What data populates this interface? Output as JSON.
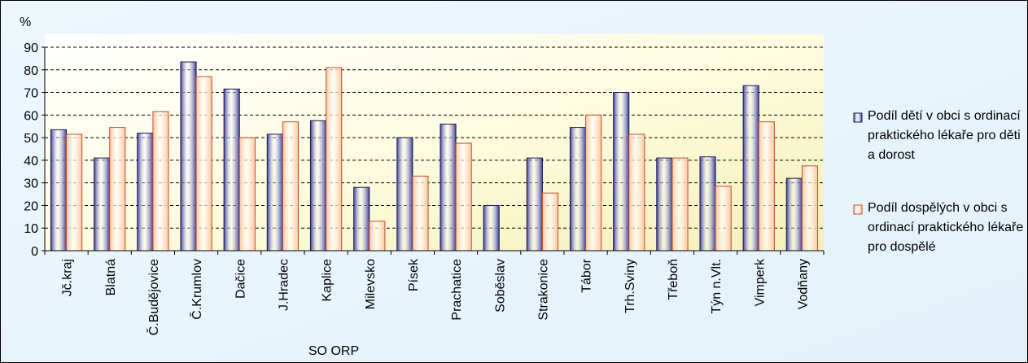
{
  "chart_data": {
    "type": "bar",
    "y_label": "%",
    "x_label": "SO ORP",
    "categories": [
      "Jč.kraj",
      "Blatná",
      "Č.Budějovice",
      "Č.Krumlov",
      "Dačice",
      "J.Hradec",
      "Kaplice",
      "Milevsko",
      "Písek",
      "Prachatice",
      "Soběslav",
      "Strakonice",
      "Tábor",
      "Trh.Sviny",
      "Třeboň",
      "Týn n.Vlt.",
      "Vimperk",
      "Vodňany"
    ],
    "series": [
      {
        "name": "Podíl dětí v obci s ordinací praktického lékaře pro děti a dorost",
        "color": "#3c3f9c",
        "values": [
          53.5,
          41,
          52,
          83.5,
          71.5,
          51.5,
          57.5,
          28,
          50,
          56,
          20,
          41,
          54.5,
          70,
          41,
          41.5,
          73,
          32
        ]
      },
      {
        "name": "Podíl dospělých v obci s ordinací praktického lékaře pro dospělé",
        "color": "#ffc49c",
        "values": [
          51.5,
          54.5,
          61.5,
          77,
          50,
          57,
          81,
          13,
          33,
          47.5,
          null,
          25.5,
          60,
          51.5,
          41,
          28.5,
          57,
          37.5
        ]
      }
    ],
    "ylim": [
      0,
      90
    ],
    "yticks": [
      0,
      10,
      20,
      30,
      40,
      50,
      60,
      70,
      80,
      90
    ],
    "grid": true,
    "legend": "right"
  }
}
